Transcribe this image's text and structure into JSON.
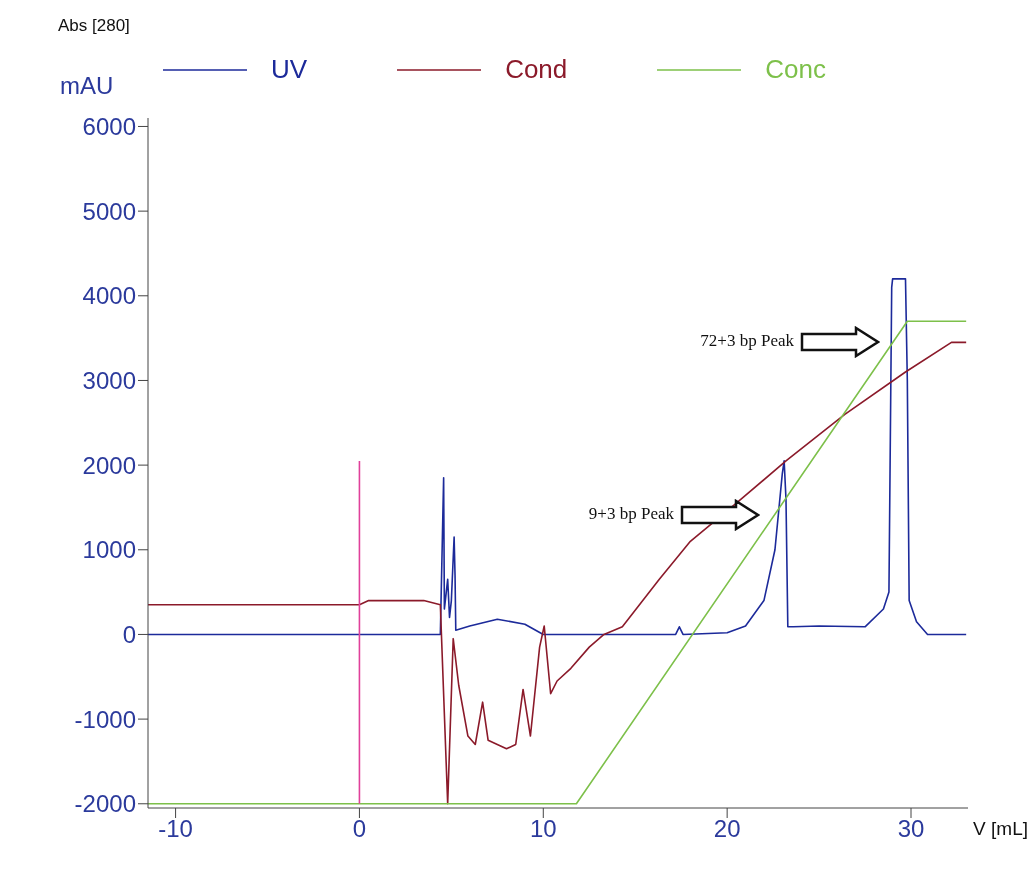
{
  "chart_data": {
    "type": "line",
    "title": "Abs [280]",
    "ylabel": "mAU",
    "xlabel": "V [mL]",
    "xlim": [
      -11.5,
      33.1
    ],
    "xticks": [
      -10,
      0,
      10,
      20,
      30
    ],
    "ylim": [
      -2050,
      6100
    ],
    "yticks": [
      -2000,
      -1000,
      0,
      1000,
      2000,
      3000,
      4000,
      5000,
      6000
    ],
    "grid": false,
    "legend": "top",
    "marker": "none",
    "line_style": "solid",
    "series": [
      {
        "name": "UV",
        "color": "#1c2a9a",
        "x": [
          -11.5,
          4.4,
          4.58,
          4.62,
          4.8,
          4.9,
          5.0,
          5.15,
          5.2,
          5.24,
          6,
          7.5,
          9,
          10,
          13,
          17.2,
          17.4,
          17.6,
          20,
          21,
          22,
          22.6,
          23.0,
          23.1,
          23.2,
          23.3,
          23.6,
          25,
          27.5,
          28.5,
          28.8,
          28.95,
          29.0,
          29.7,
          29.8,
          29.9,
          30.3,
          30.9,
          33.0
        ],
        "values": [
          0,
          0,
          1850,
          300,
          650,
          200,
          400,
          1150,
          700,
          50,
          100,
          180,
          120,
          0,
          0,
          0,
          90,
          0,
          20,
          100,
          400,
          1000,
          1900,
          2050,
          1600,
          90,
          90,
          100,
          90,
          300,
          500,
          4100,
          4200,
          4200,
          3000,
          400,
          150,
          0,
          0
        ]
      },
      {
        "name": "Cond",
        "color": "#8b1a2a",
        "x": [
          -11.5,
          -5,
          0,
          0.5,
          3.5,
          4.4,
          4.8,
          5.1,
          5.4,
          5.9,
          6.3,
          6.7,
          7.0,
          7.5,
          8.0,
          8.5,
          8.9,
          9.3,
          9.8,
          10.05,
          10.4,
          10.75,
          11.5,
          12.5,
          13.3,
          14.3,
          16.3,
          18,
          20.5,
          23.2,
          26.4,
          29.7,
          32.2,
          33.0
        ],
        "values": [
          350,
          350,
          350,
          400,
          400,
          350,
          -2000,
          -50,
          -600,
          -1200,
          -1300,
          -800,
          -1250,
          -1300,
          -1350,
          -1300,
          -650,
          -1200,
          -150,
          100,
          -700,
          -550,
          -400,
          -150,
          0,
          90,
          650,
          1100,
          1550,
          2050,
          2600,
          3100,
          3450,
          3450
        ]
      },
      {
        "name": "Conc",
        "color": "#7dc04a",
        "x": [
          -11.5,
          11.8,
          29.8,
          33.0
        ],
        "values": [
          -2000,
          -2000,
          3700,
          3700
        ]
      },
      {
        "color": "#e0409a",
        "x": [
          0,
          0
        ],
        "values": [
          -2000,
          2050
        ]
      }
    ],
    "annotations": [
      "72+3 bp Peak",
      "9+3 bp Peak"
    ]
  }
}
